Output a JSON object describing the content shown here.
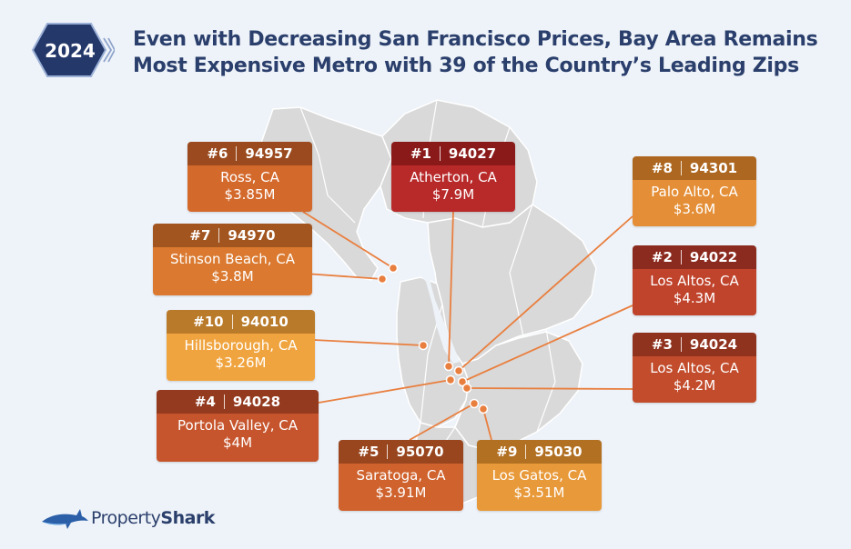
{
  "header": {
    "year": "2024",
    "title_line1": "Even with Decreasing San Francisco Prices, Bay Area Remains",
    "title_line2": "Most Expensive Metro with 39 of the Country’s Leading Zips"
  },
  "cards": [
    {
      "rank": "#6",
      "zip": "94957",
      "city": "Ross, CA",
      "price": "$3.85M",
      "head_color": "#9a4a1e",
      "body_color": "#d4692c"
    },
    {
      "rank": "#1",
      "zip": "94027",
      "city": "Atherton, CA",
      "price": "$7.9M",
      "head_color": "#8a1a1a",
      "body_color": "#b8292a"
    },
    {
      "rank": "#8",
      "zip": "94301",
      "city": "Palo Alto, CA",
      "price": "$3.6M",
      "head_color": "#ad6720",
      "body_color": "#e48f37"
    },
    {
      "rank": "#7",
      "zip": "94970",
      "city": "Stinson Beach, CA",
      "price": "$3.8M",
      "head_color": "#a2551f",
      "body_color": "#da792f"
    },
    {
      "rank": "#2",
      "zip": "94022",
      "city": "Los Altos, CA",
      "price": "$4.3M",
      "head_color": "#8b2a1e",
      "body_color": "#c0432c"
    },
    {
      "rank": "#10",
      "zip": "94010",
      "city": "Hillsborough, CA",
      "price": "$3.26M",
      "head_color": "#b97a2a",
      "body_color": "#f0a43f"
    },
    {
      "rank": "#3",
      "zip": "94024",
      "city": "Los Altos, CA",
      "price": "$4.2M",
      "head_color": "#8f321e",
      "body_color": "#c24c2c"
    },
    {
      "rank": "#4",
      "zip": "94028",
      "city": "Portola Valley, CA",
      "price": "$4M",
      "head_color": "#933a1f",
      "body_color": "#c6552d"
    },
    {
      "rank": "#5",
      "zip": "95070",
      "city": "Saratoga, CA",
      "price": "$3.91M",
      "head_color": "#99461f",
      "body_color": "#cf622d"
    },
    {
      "rank": "#9",
      "zip": "95030",
      "city": "Los Gatos, CA",
      "price": "$3.51M",
      "head_color": "#b27022",
      "body_color": "#e89939"
    }
  ],
  "colors": {
    "title": "#2b3f6c",
    "map_land": "#d9d9d9",
    "map_border": "#ffffff",
    "leader_line": "#e97f3f",
    "background": "#eef3f9"
  },
  "logo": {
    "part1": "Property",
    "part2": "Shark",
    "icon": "shark-icon"
  }
}
